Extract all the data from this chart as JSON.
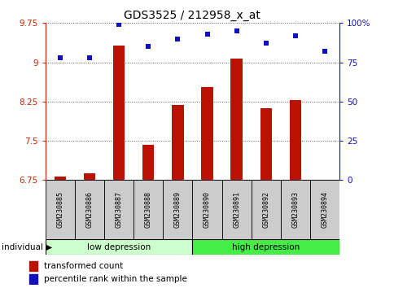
{
  "title": "GDS3525 / 212958_x_at",
  "samples": [
    "GSM230885",
    "GSM230886",
    "GSM230887",
    "GSM230888",
    "GSM230889",
    "GSM230890",
    "GSM230891",
    "GSM230892",
    "GSM230893",
    "GSM230894"
  ],
  "bar_values": [
    6.82,
    6.88,
    9.32,
    7.42,
    8.18,
    8.52,
    9.07,
    8.12,
    8.27,
    6.72
  ],
  "dot_values": [
    78,
    78,
    99,
    85,
    90,
    93,
    95,
    87,
    92,
    82
  ],
  "ylim_left": [
    6.75,
    9.75
  ],
  "ylim_right": [
    0,
    100
  ],
  "yticks_left": [
    6.75,
    7.5,
    8.25,
    9.0,
    9.75
  ],
  "yticks_right": [
    0,
    25,
    50,
    75,
    100
  ],
  "ytick_labels_left": [
    "6.75",
    "7.5",
    "8.25",
    "9",
    "9.75"
  ],
  "ytick_labels_right": [
    "0",
    "25",
    "50",
    "75",
    "100%"
  ],
  "bar_color": "#bb1100",
  "dot_color": "#1111bb",
  "group1_label": "low depression",
  "group2_label": "high depression",
  "group1_count": 5,
  "group2_count": 5,
  "group1_color": "#ccffcc",
  "group2_color": "#44ee44",
  "individual_label": "individual",
  "legend_bar_label": "transformed count",
  "legend_dot_label": "percentile rank within the sample",
  "grid_color": "#555555",
  "background_color": "#ffffff",
  "tick_label_color_left": "#cc2200",
  "tick_label_color_right": "#1111bb",
  "sample_box_color": "#cccccc",
  "title_fontsize": 10,
  "bar_width": 0.4
}
